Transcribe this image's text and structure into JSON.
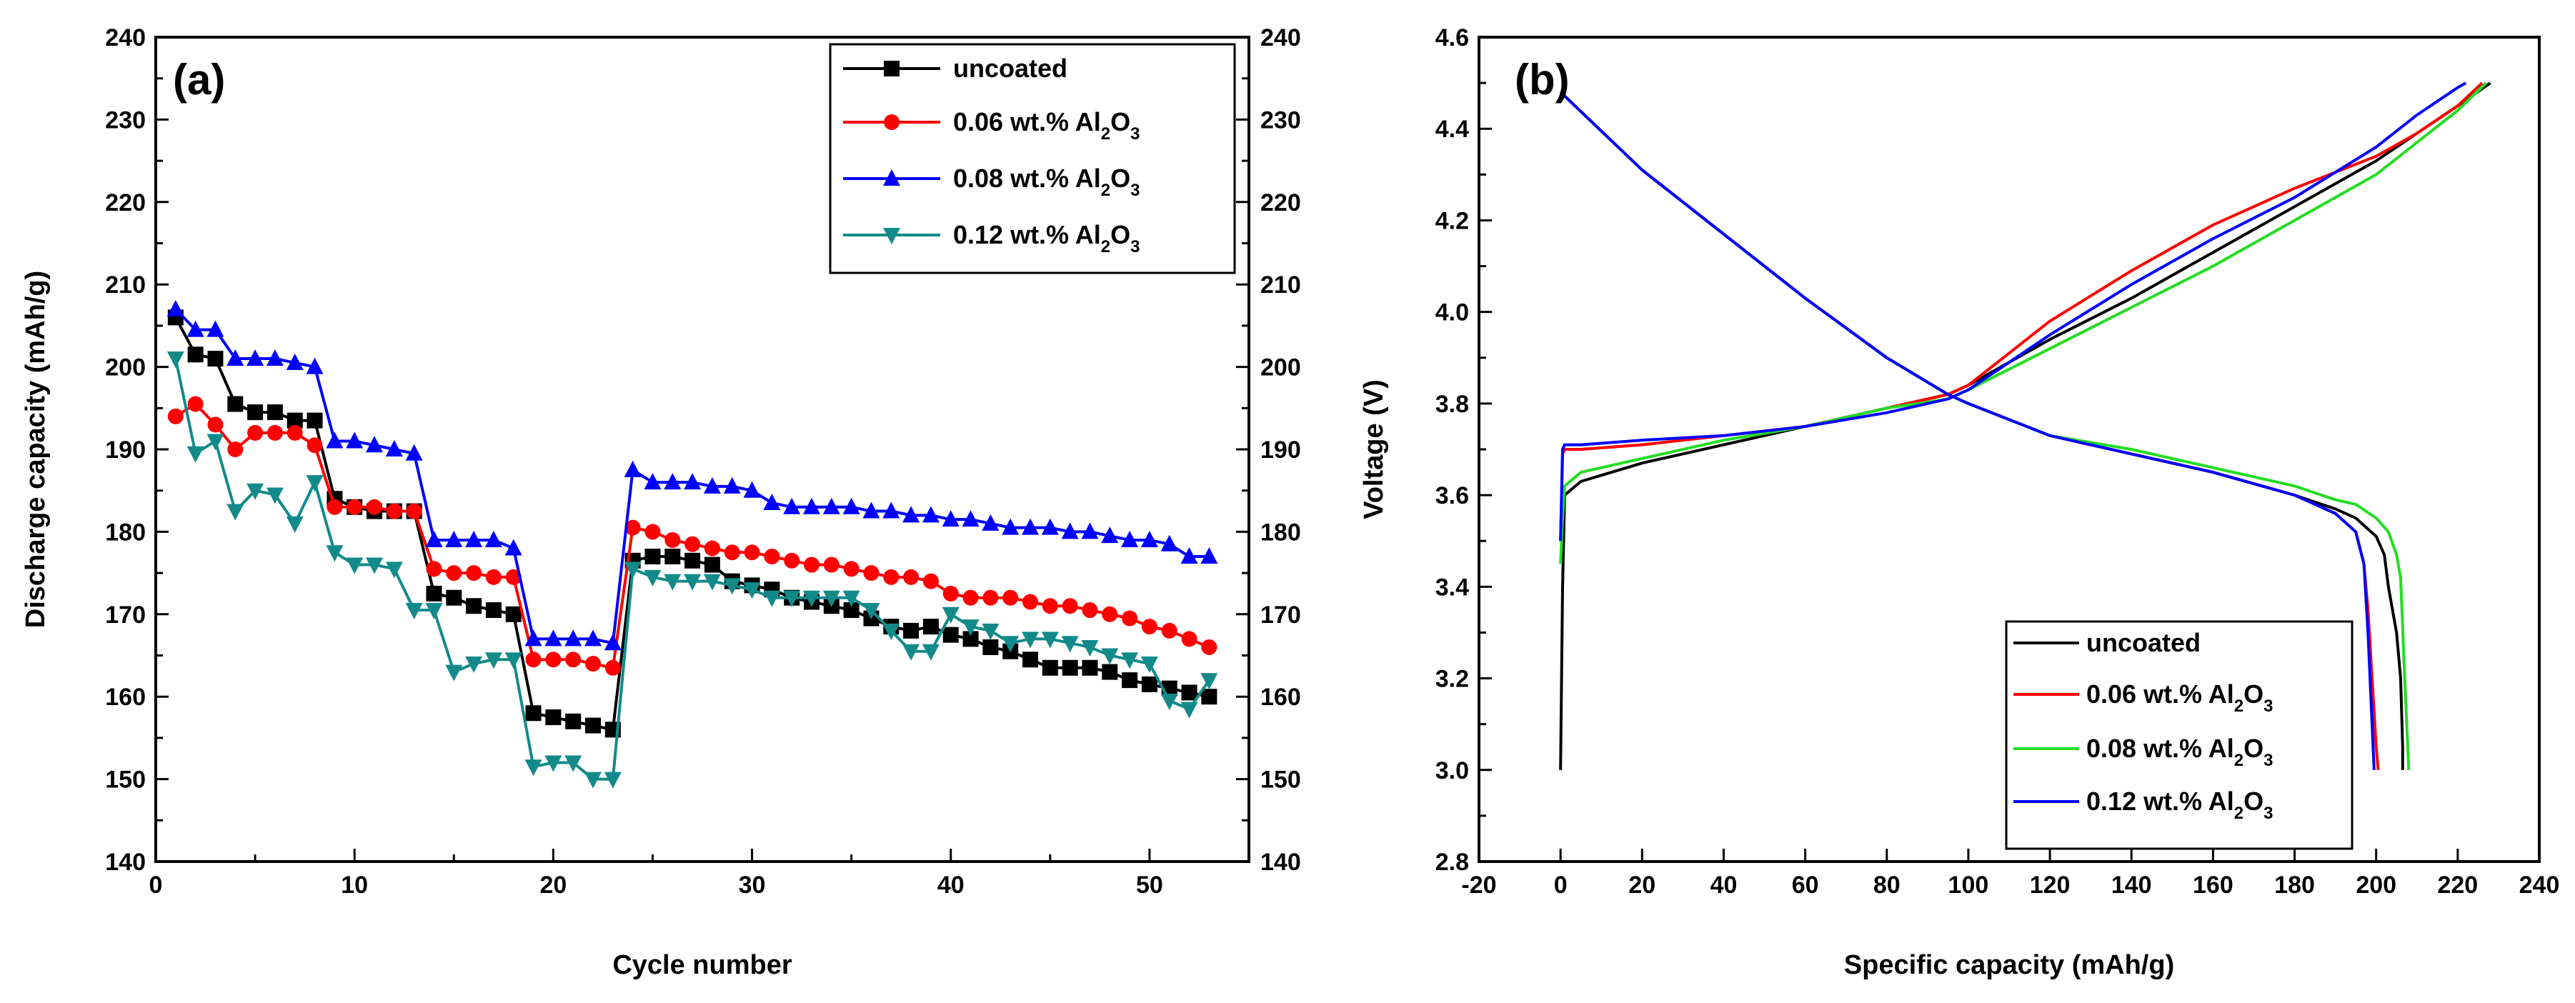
{
  "chart_data": [
    {
      "type": "line",
      "panel_label": "(a)",
      "xlabel": "Cycle number",
      "ylabel": "Discharge capacity (mAh/g)",
      "xlim": [
        0,
        55
      ],
      "ylim": [
        140,
        240
      ],
      "xticks": [
        0,
        10,
        20,
        30,
        40,
        50
      ],
      "yticks": [
        140,
        150,
        160,
        170,
        180,
        190,
        200,
        210,
        220,
        230,
        240
      ],
      "legend_position": "top-right",
      "series": [
        {
          "name": "uncoated",
          "name_base": "uncoated",
          "name_sub1": "",
          "name_mid": "",
          "name_sub2": "",
          "color": "#000000",
          "marker": "square",
          "x": [
            1,
            2,
            3,
            4,
            5,
            6,
            7,
            8,
            9,
            10,
            11,
            12,
            13,
            14,
            15,
            16,
            17,
            18,
            19,
            20,
            21,
            22,
            23,
            24,
            25,
            26,
            27,
            28,
            29,
            30,
            31,
            32,
            33,
            34,
            35,
            36,
            37,
            38,
            39,
            40,
            41,
            42,
            43,
            44,
            45,
            46,
            47,
            48,
            49,
            50,
            51,
            52,
            53
          ],
          "y": [
            206,
            201.5,
            201,
            195.5,
            194.5,
            194.5,
            193.5,
            193.5,
            184,
            183,
            182.5,
            182.5,
            182.5,
            172.5,
            172,
            171,
            170.5,
            170,
            158,
            157.5,
            157,
            156.5,
            156,
            176.5,
            177,
            177,
            176.5,
            176,
            174,
            173.5,
            173,
            172,
            171.5,
            171,
            170.5,
            169.5,
            168.5,
            168,
            168.5,
            167.5,
            167,
            166,
            165.5,
            164.5,
            163.5,
            163.5,
            163.5,
            163,
            162,
            161.5,
            161,
            160.5,
            160
          ]
        },
        {
          "name": "0.06 wt.% Al2O3",
          "name_base": "0.06 wt.% Al",
          "name_sub1": "2",
          "name_mid": "O",
          "name_sub2": "3",
          "color": "#ff0000",
          "marker": "circle",
          "x": [
            1,
            2,
            3,
            4,
            5,
            6,
            7,
            8,
            9,
            10,
            11,
            12,
            13,
            14,
            15,
            16,
            17,
            18,
            19,
            20,
            21,
            22,
            23,
            24,
            25,
            26,
            27,
            28,
            29,
            30,
            31,
            32,
            33,
            34,
            35,
            36,
            37,
            38,
            39,
            40,
            41,
            42,
            43,
            44,
            45,
            46,
            47,
            48,
            49,
            50,
            51,
            52,
            53
          ],
          "y": [
            194,
            195.5,
            193,
            190,
            192,
            192,
            192,
            190.5,
            183,
            183,
            183,
            182.5,
            182.5,
            175.5,
            175,
            175,
            174.5,
            174.5,
            164.5,
            164.5,
            164.5,
            164,
            163.5,
            180.5,
            180,
            179,
            178.5,
            178,
            177.5,
            177.5,
            177,
            176.5,
            176,
            176,
            175.5,
            175,
            174.5,
            174.5,
            174,
            172.5,
            172,
            172,
            172,
            171.5,
            171,
            171,
            170.5,
            170,
            169.5,
            168.5,
            168,
            167,
            166
          ]
        },
        {
          "name": "0.08 wt.% Al2O3",
          "name_base": "0.08 wt.% Al",
          "name_sub1": "2",
          "name_mid": "O",
          "name_sub2": "3",
          "color": "#0000ff",
          "marker": "triangle-up",
          "x": [
            1,
            2,
            3,
            4,
            5,
            6,
            7,
            8,
            9,
            10,
            11,
            12,
            13,
            14,
            15,
            16,
            17,
            18,
            19,
            20,
            21,
            22,
            23,
            24,
            25,
            26,
            27,
            28,
            29,
            30,
            31,
            32,
            33,
            34,
            35,
            36,
            37,
            38,
            39,
            40,
            41,
            42,
            43,
            44,
            45,
            46,
            47,
            48,
            49,
            50,
            51,
            52,
            53
          ],
          "y": [
            207,
            204.5,
            204.5,
            201,
            201,
            201,
            200.5,
            200,
            191,
            191,
            190.5,
            190,
            189.5,
            179,
            179,
            179,
            179,
            178,
            167,
            167,
            167,
            167,
            166.5,
            187.5,
            186,
            186,
            186,
            185.5,
            185.5,
            185,
            183.5,
            183,
            183,
            183,
            183,
            182.5,
            182.5,
            182,
            182,
            181.5,
            181.5,
            181,
            180.5,
            180.5,
            180.5,
            180,
            180,
            179.5,
            179,
            179,
            178.5,
            177,
            177
          ]
        },
        {
          "name": "0.12 wt.% Al2O3",
          "name_base": "0.12 wt.% Al",
          "name_sub1": "2",
          "name_mid": "O",
          "name_sub2": "3",
          "color": "#138a8a",
          "marker": "triangle-down",
          "x": [
            1,
            2,
            3,
            4,
            5,
            6,
            7,
            8,
            9,
            10,
            11,
            12,
            13,
            14,
            15,
            16,
            17,
            18,
            19,
            20,
            21,
            22,
            23,
            24,
            25,
            26,
            27,
            28,
            29,
            30,
            31,
            32,
            33,
            34,
            35,
            36,
            37,
            38,
            39,
            40,
            41,
            42,
            43,
            44,
            45,
            46,
            47,
            48,
            49,
            50,
            51,
            52,
            53
          ],
          "y": [
            201,
            189.5,
            191,
            182.5,
            185,
            184.5,
            181,
            186,
            177.5,
            176,
            176,
            175.5,
            170.5,
            170.5,
            163,
            164,
            164.5,
            164.5,
            151.5,
            152,
            152,
            150,
            150,
            175.5,
            174.5,
            174,
            174,
            174,
            173.5,
            173,
            172,
            172,
            172,
            172,
            172,
            170.5,
            168,
            165.5,
            165.5,
            170,
            168.5,
            168,
            166.5,
            167,
            167,
            166.5,
            166,
            165,
            164.5,
            164,
            159.5,
            158.5,
            162
          ]
        }
      ]
    },
    {
      "type": "line",
      "panel_label": "(b)",
      "xlabel": "Specific capacity (mAh/g)",
      "ylabel": "Voltage (V)",
      "xlim": [
        -20,
        240
      ],
      "ylim": [
        2.8,
        4.6
      ],
      "xticks": [
        -20,
        0,
        20,
        40,
        60,
        80,
        100,
        120,
        140,
        160,
        180,
        200,
        220,
        240
      ],
      "yticks": [
        2.8,
        3.0,
        3.2,
        3.4,
        3.6,
        3.8,
        4.0,
        4.2,
        4.4,
        4.6
      ],
      "legend_position": "bottom-right",
      "series": [
        {
          "name": "uncoated",
          "name_base": "uncoated",
          "name_sub1": "",
          "name_mid": "",
          "name_sub2": "",
          "color": "#000000",
          "charge": {
            "x": [
              0,
              0.5,
              1,
              5,
              20,
              40,
              60,
              80,
              95,
              100,
              120,
              140,
              160,
              180,
              200,
              210,
              220,
              228
            ],
            "y": [
              3.0,
              3.4,
              3.6,
              3.63,
              3.67,
              3.71,
              3.75,
              3.79,
              3.82,
              3.84,
              3.94,
              4.03,
              4.13,
              4.23,
              4.33,
              4.39,
              4.45,
              4.5
            ]
          },
          "discharge": {
            "x": [
              0,
              20,
              40,
              60,
              80,
              95,
              100,
              120,
              140,
              160,
              180,
              190,
              195,
              200,
              202,
              203,
              204,
              205,
              206,
              206.5,
              206.5
            ],
            "y": [
              4.48,
              4.31,
              4.17,
              4.03,
              3.9,
              3.82,
              3.8,
              3.73,
              3.69,
              3.65,
              3.6,
              3.57,
              3.55,
              3.51,
              3.47,
              3.4,
              3.35,
              3.3,
              3.2,
              3.05,
              3.0
            ]
          }
        },
        {
          "name": "0.06 wt.% Al2O3",
          "name_base": "0.06 wt.% Al",
          "name_sub1": "2",
          "name_mid": "O",
          "name_sub2": "3",
          "color": "#ff0000",
          "charge": {
            "x": [
              0,
              0.5,
              1,
              5,
              20,
              40,
              60,
              80,
              95,
              100,
              120,
              140,
              160,
              180,
              200,
              210,
              220,
              226
            ],
            "y": [
              3.5,
              3.69,
              3.7,
              3.7,
              3.71,
              3.73,
              3.75,
              3.79,
              3.82,
              3.84,
              3.98,
              4.09,
              4.19,
              4.27,
              4.34,
              4.39,
              4.45,
              4.5
            ]
          },
          "discharge": {
            "x": [
              0,
              20,
              40,
              60,
              80,
              95,
              100,
              120,
              140,
              160,
              180,
              190,
              195,
              197,
              198,
              199,
              200,
              200.5
            ],
            "y": [
              4.48,
              4.31,
              4.17,
              4.03,
              3.9,
              3.82,
              3.8,
              3.73,
              3.69,
              3.65,
              3.6,
              3.56,
              3.52,
              3.45,
              3.35,
              3.2,
              3.05,
              3.0
            ]
          }
        },
        {
          "name": "0.08 wt.% Al2O3",
          "name_base": "0.08 wt.% Al",
          "name_sub1": "2",
          "name_mid": "O",
          "name_sub2": "3",
          "color": "#22dd22",
          "charge": {
            "x": [
              0,
              0.5,
              1,
              5,
              20,
              40,
              60,
              80,
              95,
              100,
              120,
              140,
              160,
              180,
              200,
              210,
              220,
              227
            ],
            "y": [
              3.45,
              3.55,
              3.62,
              3.65,
              3.68,
              3.72,
              3.75,
              3.79,
              3.81,
              3.83,
              3.92,
              4.01,
              4.1,
              4.2,
              4.3,
              4.37,
              4.44,
              4.5
            ]
          },
          "discharge": {
            "x": [
              0,
              20,
              40,
              60,
              80,
              95,
              100,
              120,
              140,
              160,
              180,
              190,
              195,
              200,
              203,
              205,
              206,
              207,
              208
            ],
            "y": [
              4.48,
              4.31,
              4.17,
              4.03,
              3.9,
              3.82,
              3.8,
              3.73,
              3.7,
              3.66,
              3.62,
              3.59,
              3.58,
              3.55,
              3.52,
              3.47,
              3.42,
              3.2,
              3.0
            ]
          }
        },
        {
          "name": "0.12 wt.% Al2O3",
          "name_base": "0.12 wt.% Al",
          "name_sub1": "2",
          "name_mid": "O",
          "name_sub2": "3",
          "color": "#0000ff",
          "charge": {
            "x": [
              0,
              0.5,
              1,
              5,
              20,
              40,
              60,
              80,
              95,
              100,
              120,
              140,
              160,
              180,
              200,
              210,
              220,
              222
            ],
            "y": [
              3.5,
              3.7,
              3.71,
              3.71,
              3.72,
              3.73,
              3.75,
              3.78,
              3.81,
              3.83,
              3.95,
              4.06,
              4.16,
              4.25,
              4.36,
              4.43,
              4.49,
              4.5
            ]
          },
          "discharge": {
            "x": [
              0,
              20,
              40,
              60,
              80,
              95,
              100,
              120,
              140,
              160,
              180,
              190,
              195,
              197,
              198,
              199,
              199.5
            ],
            "y": [
              4.48,
              4.31,
              4.17,
              4.03,
              3.9,
              3.82,
              3.8,
              3.73,
              3.69,
              3.65,
              3.6,
              3.56,
              3.52,
              3.45,
              3.3,
              3.1,
              3.0
            ]
          }
        }
      ]
    }
  ]
}
